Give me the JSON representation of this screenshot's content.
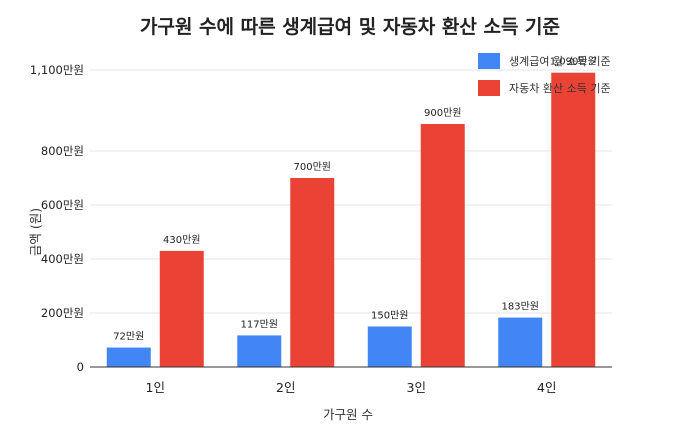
{
  "chart_data": {
    "type": "bar",
    "title": "가구원 수에 따른 생계급여 및 자동차 환산 소득 기준",
    "xlabel": "가구원 수",
    "ylabel": "금액 (원)",
    "categories": [
      "1인",
      "2인",
      "3인",
      "4인"
    ],
    "ylim": [
      0,
      1100
    ],
    "yticks": [
      0,
      200,
      400,
      600,
      800,
      1100
    ],
    "ytick_labels": [
      "0",
      "200만원",
      "400만원",
      "600만원",
      "800만원",
      "1,100만원"
    ],
    "grid": true,
    "legend_position": "top-right",
    "series": [
      {
        "name": "생계급여 월 소득 기준",
        "color": "#4285f4",
        "values": [
          72,
          117,
          150,
          183
        ],
        "labels": [
          "72만원",
          "117만원",
          "150만원",
          "183만원"
        ]
      },
      {
        "name": "자동차 환산 소득 기준",
        "color": "#ea4335",
        "values": [
          430,
          700,
          900,
          1090
        ],
        "labels": [
          "430만원",
          "700만원",
          "900만원",
          "1,090만원"
        ]
      }
    ]
  }
}
